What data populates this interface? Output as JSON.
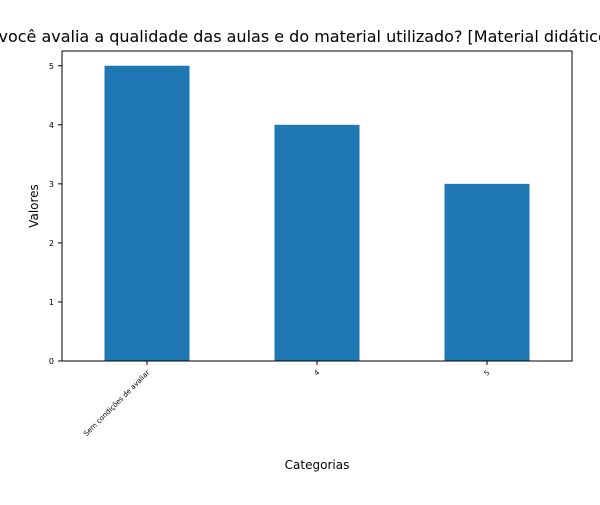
{
  "chart_data": {
    "type": "bar",
    "title": "Como você avalia a qualidade das aulas e do material utilizado? [Material didático utilizado]",
    "xlabel": "Categorias",
    "ylabel": "Valores",
    "categories": [
      "Sem condições de avaliar",
      "4",
      "5"
    ],
    "values": [
      5,
      4,
      3
    ],
    "ylim": [
      0,
      5.25
    ],
    "yticks": [
      "0",
      "1",
      "2",
      "3",
      "4",
      "5"
    ],
    "bar_color": "#1f77b4",
    "grid": false,
    "legend": "none"
  }
}
